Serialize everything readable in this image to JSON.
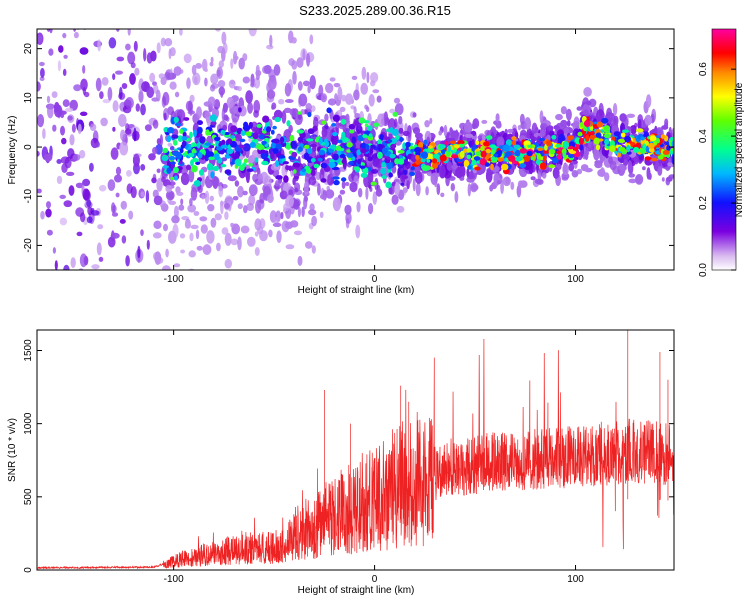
{
  "title": "S233.2025.289.00.36.R15",
  "chart_data": [
    {
      "id": "spectrogram",
      "type": "heatmap",
      "xlabel": "Height of straight line (km)",
      "ylabel": "Frequency (Hz)",
      "xlim": [
        -168,
        149
      ],
      "ylim": [
        -25,
        24
      ],
      "xticks": [
        -100,
        0,
        100
      ],
      "yticks": [
        -20,
        -10,
        0,
        10,
        20
      ],
      "colorbar": {
        "label": "Normalized spectral amplitude",
        "range": [
          0,
          0.72
        ],
        "ticks": [
          "0.0",
          "0.2",
          "0.4",
          "0.6"
        ],
        "tick_values": [
          0,
          0.2,
          0.4,
          0.6
        ],
        "colormap": "rainbow (white to purple to blue to cyan to green to yellow to red to magenta)"
      },
      "description_centerline": {
        "x": [
          -100,
          -60,
          -30,
          0,
          20,
          50,
          80,
          100,
          105,
          120,
          140,
          149
        ],
        "frequency": [
          0,
          0,
          0,
          -1,
          -2,
          -1,
          -1,
          0,
          4,
          1,
          0,
          -1
        ]
      }
    },
    {
      "id": "snr",
      "type": "line",
      "xlabel": "Height of straight line (km)",
      "ylabel": "SNR (10 * v/v)",
      "xlim": [
        -168,
        149
      ],
      "ylim": [
        0,
        1640
      ],
      "xticks": [
        -100,
        0,
        100
      ],
      "yticks": [
        0,
        500,
        1000,
        1500
      ],
      "series": [
        {
          "name": "SNR",
          "color": "#ee2222",
          "envelope_x": [
            -168,
            -110,
            -100,
            -80,
            -60,
            -45,
            -40,
            -30,
            -20,
            -10,
            0,
            10,
            20,
            30,
            40,
            50,
            60,
            70,
            80,
            90,
            100,
            110,
            120,
            130,
            140,
            149
          ],
          "envelope_mean": [
            15,
            20,
            60,
            120,
            150,
            160,
            250,
            300,
            380,
            430,
            500,
            560,
            620,
            660,
            700,
            720,
            740,
            750,
            760,
            770,
            780,
            790,
            800,
            810,
            800,
            790
          ],
          "spikes": [
            {
              "x": -25,
              "y": 1230
            },
            {
              "x": -12,
              "y": 1000
            },
            {
              "x": 13,
              "y": 1260
            },
            {
              "x": 17,
              "y": 1150
            },
            {
              "x": 126,
              "y": 1640
            },
            {
              "x": 142,
              "y": 1490
            },
            {
              "x": 146,
              "y": 1300
            }
          ]
        }
      ]
    }
  ],
  "colors": {
    "snr_line": "#ee2222",
    "axis": "#000000",
    "background": "#ffffff"
  }
}
